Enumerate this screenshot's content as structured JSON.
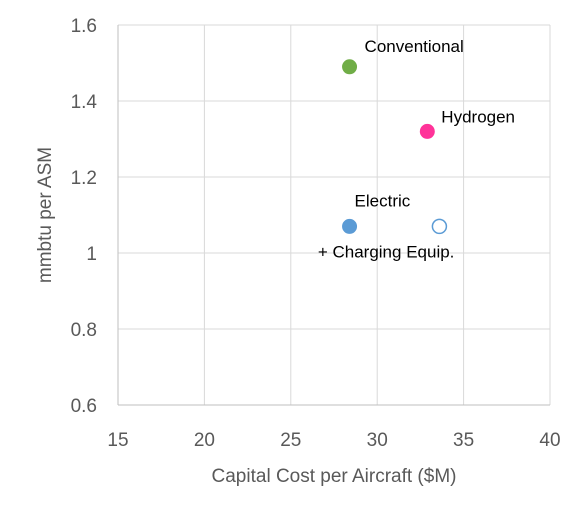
{
  "chart_data": {
    "type": "scatter",
    "title": "",
    "xlabel": "Capital Cost per Aircraft ($M)",
    "ylabel": "mmbtu per ASM",
    "xlim": [
      15,
      40
    ],
    "ylim": [
      0.6,
      1.6
    ],
    "xticks": [
      "15",
      "20",
      "25",
      "30",
      "35",
      "40"
    ],
    "yticks": [
      "0.6",
      "0.8",
      "1",
      "1.2",
      "1.4",
      "1.6"
    ],
    "grid": true,
    "legend": "none",
    "points": [
      {
        "label": "Conventional",
        "x": 28.4,
        "y": 1.49,
        "color": "#70AD47",
        "filled": true
      },
      {
        "label": "Hydrogen",
        "x": 32.9,
        "y": 1.32,
        "color": "#FF3399",
        "filled": true
      },
      {
        "label": "Electric",
        "x": 28.4,
        "y": 1.07,
        "color": "#5B9BD5",
        "filled": true
      },
      {
        "label": "+ Charging Equip.",
        "x": 33.6,
        "y": 1.07,
        "color": "#5B9BD5",
        "filled": false
      }
    ]
  }
}
